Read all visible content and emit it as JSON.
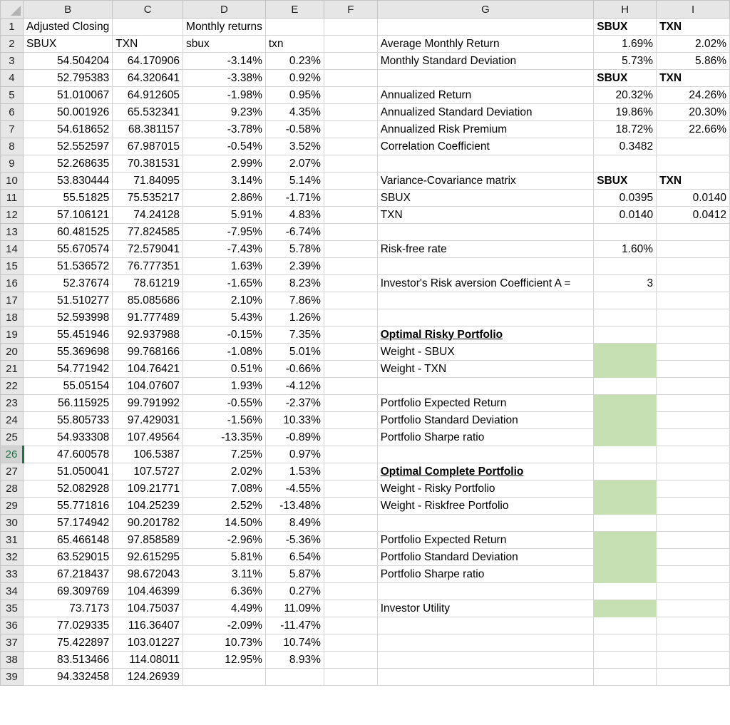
{
  "columns": [
    "B",
    "C",
    "D",
    "E",
    "F",
    "G",
    "H",
    "I"
  ],
  "header_row": {
    "1": {
      "B": "Adjusted Closing",
      "D": "Monthly returns",
      "H": "SBUX",
      "I": "TXN"
    },
    "2": {
      "B": "SBUX",
      "C": "TXN",
      "D": "sbux",
      "E": "txn",
      "G": "Average Monthly Return",
      "H": "1.69%",
      "I": "2.02%"
    }
  },
  "prices": [
    [
      "54.504204",
      "64.170906",
      "-3.14%",
      "0.23%"
    ],
    [
      "52.795383",
      "64.320641",
      "-3.38%",
      "0.92%"
    ],
    [
      "51.010067",
      "64.912605",
      "-1.98%",
      "0.95%"
    ],
    [
      "50.001926",
      "65.532341",
      "9.23%",
      "4.35%"
    ],
    [
      "54.618652",
      "68.381157",
      "-3.78%",
      "-0.58%"
    ],
    [
      "52.552597",
      "67.987015",
      "-0.54%",
      "3.52%"
    ],
    [
      "52.268635",
      "70.381531",
      "2.99%",
      "2.07%"
    ],
    [
      "53.830444",
      "71.84095",
      "3.14%",
      "5.14%"
    ],
    [
      "55.51825",
      "75.535217",
      "2.86%",
      "-1.71%"
    ],
    [
      "57.106121",
      "74.24128",
      "5.91%",
      "4.83%"
    ],
    [
      "60.481525",
      "77.824585",
      "-7.95%",
      "-6.74%"
    ],
    [
      "55.670574",
      "72.579041",
      "-7.43%",
      "5.78%"
    ],
    [
      "51.536572",
      "76.777351",
      "1.63%",
      "2.39%"
    ],
    [
      "52.37674",
      "78.61219",
      "-1.65%",
      "8.23%"
    ],
    [
      "51.510277",
      "85.085686",
      "2.10%",
      "7.86%"
    ],
    [
      "52.593998",
      "91.777489",
      "5.43%",
      "1.26%"
    ],
    [
      "55.451946",
      "92.937988",
      "-0.15%",
      "7.35%"
    ],
    [
      "55.369698",
      "99.768166",
      "-1.08%",
      "5.01%"
    ],
    [
      "54.771942",
      "104.76421",
      "0.51%",
      "-0.66%"
    ],
    [
      "55.05154",
      "104.07607",
      "1.93%",
      "-4.12%"
    ],
    [
      "56.115925",
      "99.791992",
      "-0.55%",
      "-2.37%"
    ],
    [
      "55.805733",
      "97.429031",
      "-1.56%",
      "10.33%"
    ],
    [
      "54.933308",
      "107.49564",
      "-13.35%",
      "-0.89%"
    ],
    [
      "47.600578",
      "106.5387",
      "7.25%",
      "0.97%"
    ],
    [
      "51.050041",
      "107.5727",
      "2.02%",
      "1.53%"
    ],
    [
      "52.082928",
      "109.21771",
      "7.08%",
      "-4.55%"
    ],
    [
      "55.771816",
      "104.25239",
      "2.52%",
      "-13.48%"
    ],
    [
      "57.174942",
      "90.201782",
      "14.50%",
      "8.49%"
    ],
    [
      "65.466148",
      "97.858589",
      "-2.96%",
      "-5.36%"
    ],
    [
      "63.529015",
      "92.615295",
      "5.81%",
      "6.54%"
    ],
    [
      "67.218437",
      "98.672043",
      "3.11%",
      "5.87%"
    ],
    [
      "69.309769",
      "104.46399",
      "6.36%",
      "0.27%"
    ],
    [
      "73.7173",
      "104.75037",
      "4.49%",
      "11.09%"
    ],
    [
      "77.029335",
      "116.36407",
      "-2.09%",
      "-11.47%"
    ],
    [
      "75.422897",
      "103.01227",
      "10.73%",
      "10.74%"
    ],
    [
      "83.513466",
      "114.08011",
      "12.95%",
      "8.93%"
    ],
    [
      "94.332458",
      "124.26939",
      "",
      ""
    ]
  ],
  "right": {
    "3": {
      "G": "Monthly Standard Deviation",
      "H": "5.73%",
      "I": "5.86%"
    },
    "4": {
      "H": "SBUX",
      "I": "TXN"
    },
    "5": {
      "G": "Annualized Return",
      "H": "20.32%",
      "I": "24.26%"
    },
    "6": {
      "G": "Annualized Standard Deviation",
      "H": "19.86%",
      "I": "20.30%"
    },
    "7": {
      "G": "Annualized Risk Premium",
      "H": "18.72%",
      "I": "22.66%"
    },
    "8": {
      "G": "Correlation Coefficient",
      "H": "0.3482"
    },
    "10": {
      "G": "Variance-Covariance matrix",
      "H": "SBUX",
      "I": "TXN"
    },
    "11": {
      "G": "SBUX",
      "H": "0.0395",
      "I": "0.0140"
    },
    "12": {
      "G": "TXN",
      "H": "0.0140",
      "I": "0.0412"
    },
    "14": {
      "G": "Risk-free rate",
      "H": "1.60%"
    },
    "16": {
      "G": "Investor's Risk aversion Coefficient A =",
      "H": "3"
    },
    "19": {
      "G": "Optimal Risky Portfolio"
    },
    "20": {
      "G": "Weight - SBUX"
    },
    "21": {
      "G": "Weight - TXN"
    },
    "23": {
      "G": "Portfolio Expected Return"
    },
    "24": {
      "G": "Portfolio Standard Deviation"
    },
    "25": {
      "G": "Portfolio Sharpe ratio"
    },
    "27": {
      "G": "Optimal Complete Portfolio"
    },
    "28": {
      "G": "Weight - Risky Portfolio"
    },
    "29": {
      "G": "Weight - Riskfree Portfolio"
    },
    "31": {
      "G": "Portfolio Expected Return"
    },
    "32": {
      "G": "Portfolio Standard Deviation"
    },
    "33": {
      "G": "Portfolio Sharpe ratio"
    },
    "35": {
      "G": "Investor Utility"
    }
  },
  "active_row": "26",
  "colors": {
    "input_fill": "#c6e0b4",
    "active_header": "#217346"
  }
}
